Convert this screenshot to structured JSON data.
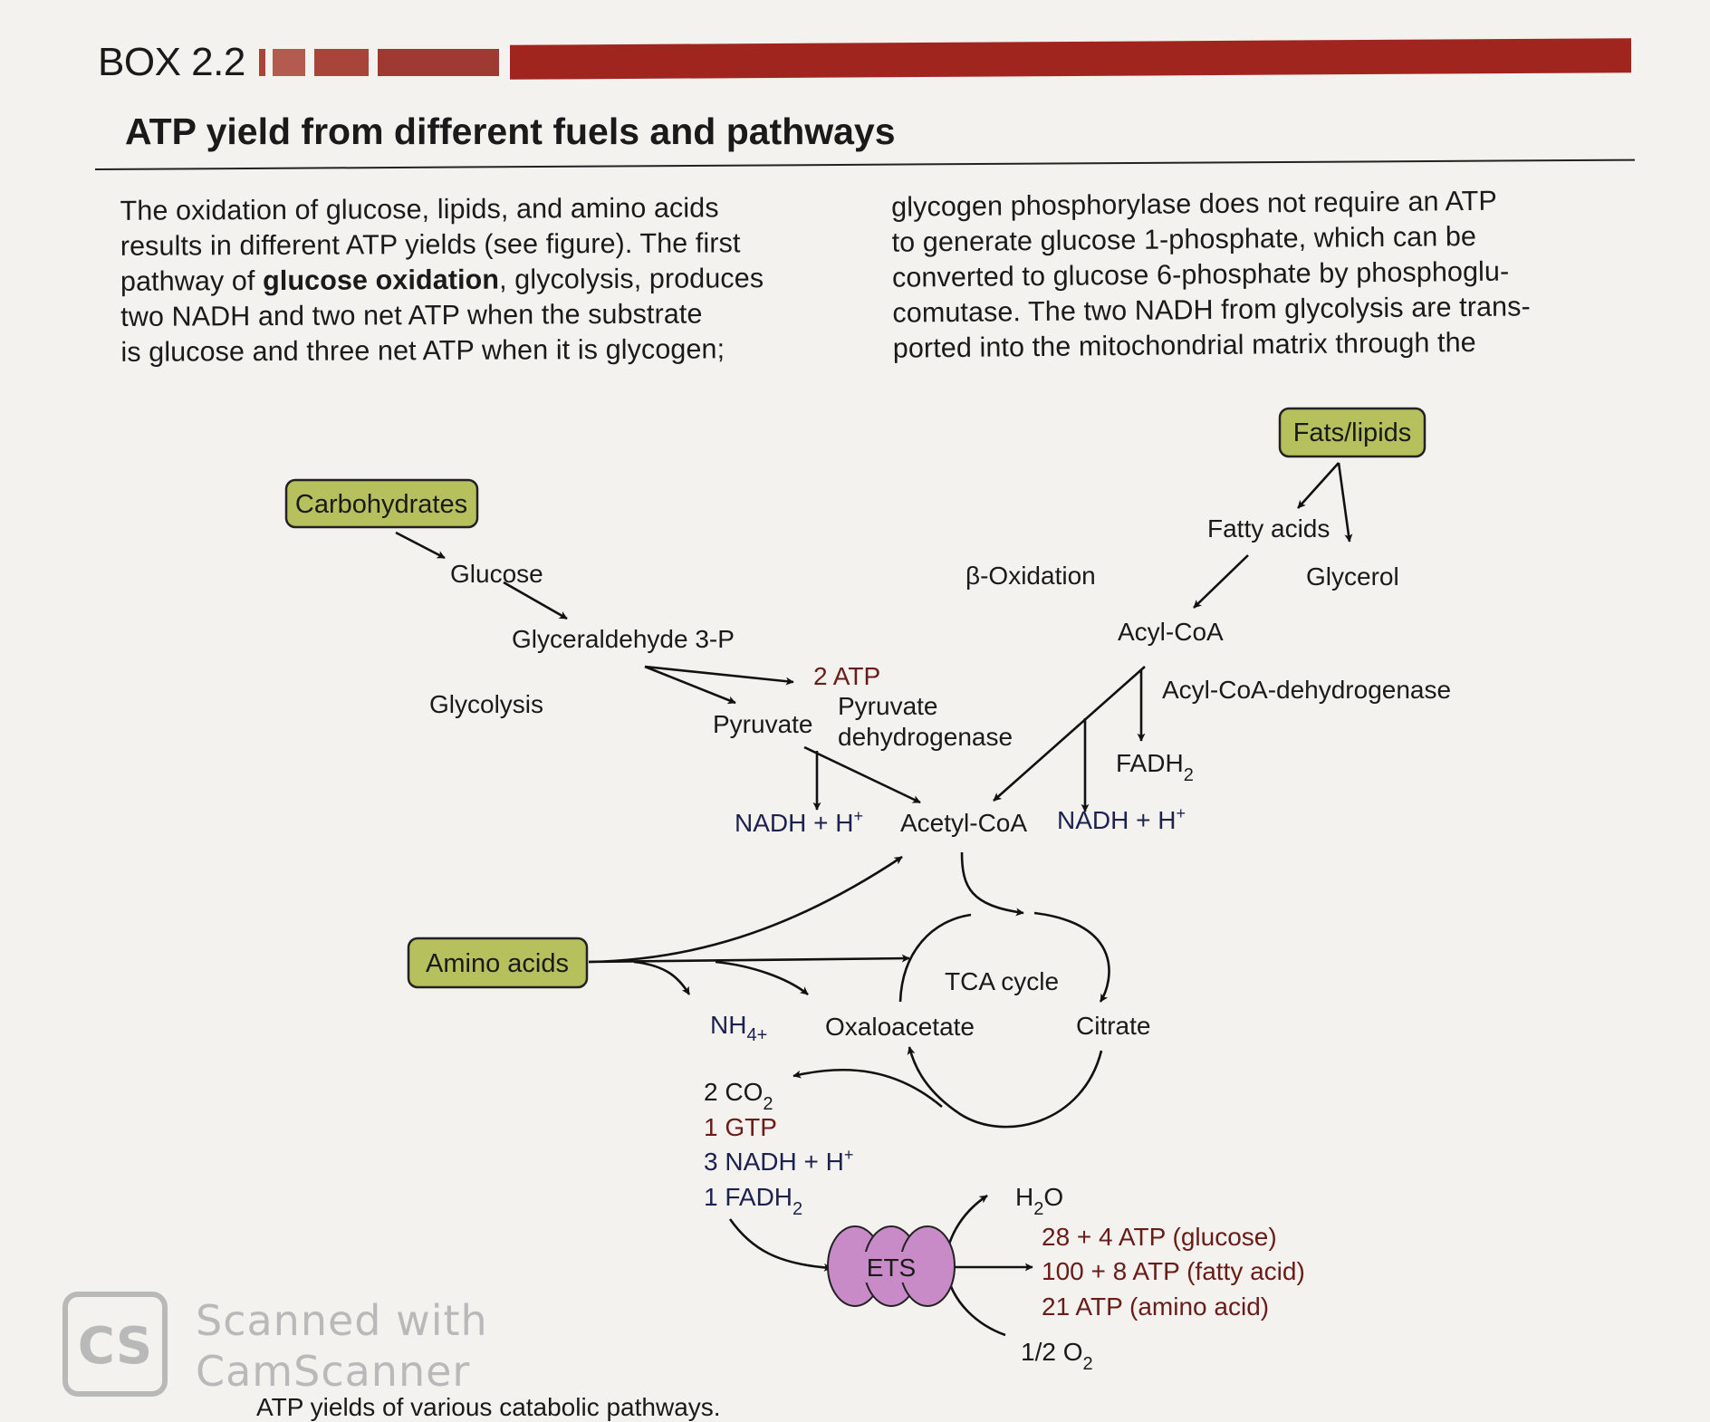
{
  "header": {
    "box_label": "BOX 2.2",
    "title": "ATP yield from different fuels and pathways"
  },
  "text": {
    "left_lines": [
      [
        "The oxidation of glucose, lipids, and amino acids",
        "",
        ""
      ],
      [
        "results in different ATP yields (see figure). The first",
        "",
        ""
      ],
      [
        "pathway of ",
        "glucose oxidation",
        ", glycolysis, produces"
      ],
      [
        "two NADH and two net ATP when the substrate",
        "",
        ""
      ],
      [
        "is glucose and three net ATP when it is glycogen;",
        "",
        ""
      ]
    ],
    "right_lines": [
      "glycogen phosphorylase does not require an ATP",
      "to generate glucose 1-phosphate, which can be",
      "converted to glucose 6-phosphate by phosphoglu-",
      "comutase. The two NADH from glycolysis are trans-",
      "ported into the mitochondrial matrix through the"
    ]
  },
  "diagram": {
    "boxes": {
      "carbohydrates": "Carbohydrates",
      "fats": "Fats/lipids",
      "amino": "Amino acids"
    },
    "labels": {
      "glucose": "Glucose",
      "g3p": "Glyceraldehyde 3-P",
      "glycolysis": "Glycolysis",
      "atp2": "2 ATP",
      "pyruvate": "Pyruvate",
      "pdh1": "Pyruvate",
      "pdh2": "dehydrogenase",
      "nadh_left": "NADH + H",
      "acetyl": "Acetyl-CoA",
      "nadh_right": "NADH + H",
      "plus": "+",
      "beta": "β-Oxidation",
      "fatty": "Fatty acids",
      "glycerol": "Glycerol",
      "acyl": "Acyl-CoA",
      "acyldh": "Acyl-CoA-dehydrogenase",
      "fadh2": "FADH",
      "sub2": "2",
      "tca": "TCA cycle",
      "nh4": "NH",
      "nh4_sub": "4+",
      "oxalo": "Oxaloacetate",
      "citrate": "Citrate",
      "co2": "2 CO",
      "gtp": "1 GTP",
      "nadh3": "3 NADH + H",
      "fadh1": "1 FADH",
      "h2o_h": "H",
      "h2o_o": "O",
      "ets": "ETS",
      "yield_glucose": "28 + 4 ATP (glucose)",
      "yield_fatty": "100 + 8 ATP (fatty acid)",
      "yield_amino": "21 ATP (amino acid)",
      "o2": "1/2 O"
    },
    "colors": {
      "box_fill": "#b6c05c",
      "ets_fill": "#c98bc7",
      "dark_blue": "#1d2150",
      "dark_red": "#6a1c18"
    }
  },
  "caption": "ATP yields of various catabolic pathways.",
  "watermark": {
    "logo": "CS",
    "line1": "Scanned with",
    "line2": "CamScanner"
  }
}
